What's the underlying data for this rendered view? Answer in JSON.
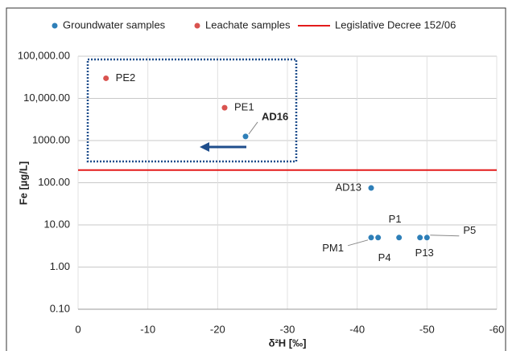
{
  "chart_data": {
    "type": "scatter",
    "xlabel": "δ²H [‰]",
    "ylabel": "Fe [µg/L]",
    "xlim": [
      0,
      -60
    ],
    "xticks": [
      0,
      -10,
      -20,
      -30,
      -40,
      -50,
      -60
    ],
    "ylim": [
      0.1,
      100000
    ],
    "yscale": "log",
    "yticks": [
      {
        "value": 0.1,
        "label": "0.10"
      },
      {
        "value": 1,
        "label": "1.00"
      },
      {
        "value": 10,
        "label": "10.00"
      },
      {
        "value": 100,
        "label": "100.00"
      },
      {
        "value": 1000,
        "label": "1000.00"
      },
      {
        "value": 10000,
        "label": "10,000.00"
      },
      {
        "value": 100000,
        "label": "100,000.00"
      }
    ],
    "grid": true,
    "series": [
      {
        "name": "Groundwater samples",
        "color": "#2e7fb8",
        "kind": "points",
        "x": [
          -24,
          -42,
          -42,
          -43,
          -46,
          -49,
          -50
        ],
        "values": [
          1250,
          75,
          5,
          5,
          5,
          5,
          5
        ],
        "point_labels": [
          "AD16",
          "AD13",
          "PM1",
          "P4",
          "P1",
          "P13",
          "P5"
        ]
      },
      {
        "name": "Leachate samples",
        "color": "#d9534f",
        "kind": "points",
        "x": [
          -4,
          -21
        ],
        "values": [
          30000,
          6000
        ],
        "point_labels": [
          "PE2",
          "PE1"
        ]
      },
      {
        "name": "Legislative Decree 152/06",
        "color": "#e31b1b",
        "kind": "line",
        "x": [
          0,
          -60
        ],
        "values": [
          200,
          200
        ]
      }
    ]
  }
}
